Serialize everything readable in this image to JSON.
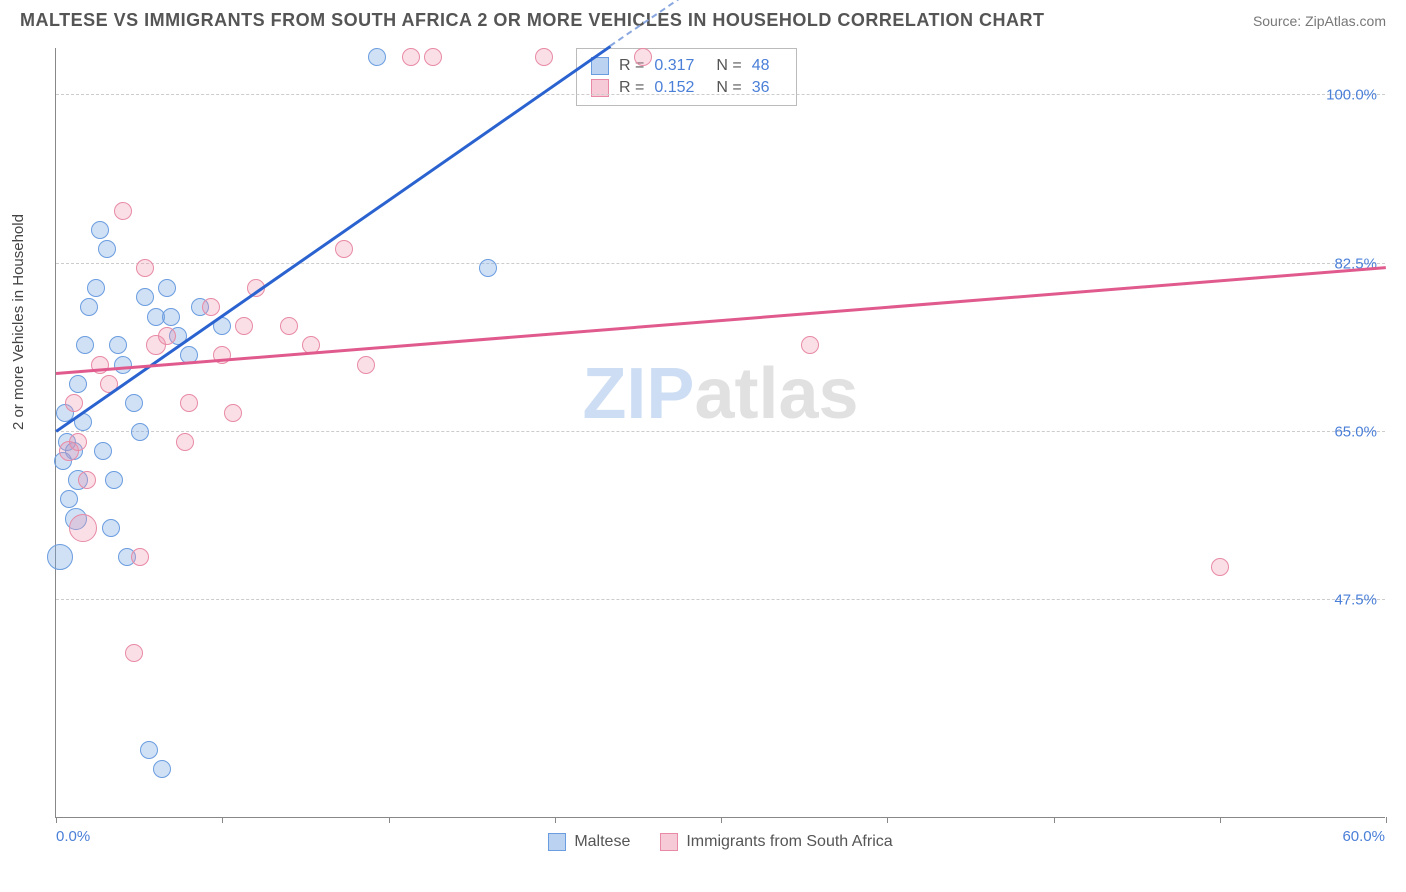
{
  "title": "MALTESE VS IMMIGRANTS FROM SOUTH AFRICA 2 OR MORE VEHICLES IN HOUSEHOLD CORRELATION CHART",
  "source": "Source: ZipAtlas.com",
  "ylabel": "2 or more Vehicles in Household",
  "watermark_a": "ZIP",
  "watermark_b": "atlas",
  "chart": {
    "type": "scatter",
    "xlim": [
      0,
      60
    ],
    "ylim": [
      25,
      105
    ],
    "x_min_label": "0.0%",
    "x_max_label": "60.0%",
    "x_ticks": [
      0,
      7.5,
      15,
      22.5,
      30,
      37.5,
      45,
      52.5,
      60
    ],
    "y_ticks": [
      {
        "v": 47.5,
        "label": "47.5%"
      },
      {
        "v": 65.0,
        "label": "65.0%"
      },
      {
        "v": 82.5,
        "label": "82.5%"
      },
      {
        "v": 100.0,
        "label": "100.0%"
      }
    ],
    "background_color": "#ffffff",
    "grid_color": "#cccccc",
    "series": [
      {
        "name": "Maltese",
        "color_fill": "rgba(120,165,225,0.35)",
        "color_stroke": "#6a9de0",
        "trend_color": "#2a62d0",
        "R": 0.317,
        "N": 48,
        "trend": {
          "x1": 0,
          "y1": 65,
          "x2": 25,
          "y2": 105
        },
        "points": [
          {
            "x": 0.5,
            "y": 64,
            "r": 9
          },
          {
            "x": 0.8,
            "y": 63,
            "r": 9
          },
          {
            "x": 0.3,
            "y": 62,
            "r": 9
          },
          {
            "x": 1.2,
            "y": 66,
            "r": 9
          },
          {
            "x": 1.0,
            "y": 60,
            "r": 10
          },
          {
            "x": 0.6,
            "y": 58,
            "r": 9
          },
          {
            "x": 0.2,
            "y": 52,
            "r": 13
          },
          {
            "x": 1.5,
            "y": 78,
            "r": 9
          },
          {
            "x": 1.8,
            "y": 80,
            "r": 9
          },
          {
            "x": 2.0,
            "y": 86,
            "r": 9
          },
          {
            "x": 2.3,
            "y": 84,
            "r": 9
          },
          {
            "x": 2.8,
            "y": 74,
            "r": 9
          },
          {
            "x": 3.0,
            "y": 72,
            "r": 9
          },
          {
            "x": 3.5,
            "y": 68,
            "r": 9
          },
          {
            "x": 4.0,
            "y": 79,
            "r": 9
          },
          {
            "x": 4.5,
            "y": 77,
            "r": 9
          },
          {
            "x": 5.0,
            "y": 80,
            "r": 9
          },
          {
            "x": 5.5,
            "y": 75,
            "r": 9
          },
          {
            "x": 6.5,
            "y": 78,
            "r": 9
          },
          {
            "x": 6.0,
            "y": 73,
            "r": 9
          },
          {
            "x": 2.5,
            "y": 55,
            "r": 9
          },
          {
            "x": 3.2,
            "y": 52,
            "r": 9
          },
          {
            "x": 4.2,
            "y": 32,
            "r": 9
          },
          {
            "x": 4.8,
            "y": 30,
            "r": 9
          },
          {
            "x": 14.5,
            "y": 104,
            "r": 9
          },
          {
            "x": 19.5,
            "y": 82,
            "r": 9
          },
          {
            "x": 1.0,
            "y": 70,
            "r": 9
          },
          {
            "x": 1.3,
            "y": 74,
            "r": 9
          },
          {
            "x": 0.4,
            "y": 67,
            "r": 9
          },
          {
            "x": 0.9,
            "y": 56,
            "r": 11
          },
          {
            "x": 2.1,
            "y": 63,
            "r": 9
          },
          {
            "x": 2.6,
            "y": 60,
            "r": 9
          },
          {
            "x": 3.8,
            "y": 65,
            "r": 9
          },
          {
            "x": 5.2,
            "y": 77,
            "r": 9
          },
          {
            "x": 7.5,
            "y": 76,
            "r": 9
          }
        ]
      },
      {
        "name": "Immigrants from South Africa",
        "color_fill": "rgba(240,150,175,0.30)",
        "color_stroke": "#e88aa5",
        "trend_color": "#e15a8d",
        "R": 0.152,
        "N": 36,
        "trend": {
          "x1": 0,
          "y1": 71,
          "x2": 60,
          "y2": 82
        },
        "points": [
          {
            "x": 0.6,
            "y": 63,
            "r": 10
          },
          {
            "x": 1.0,
            "y": 64,
            "r": 9
          },
          {
            "x": 1.4,
            "y": 60,
            "r": 9
          },
          {
            "x": 2.0,
            "y": 72,
            "r": 9
          },
          {
            "x": 2.4,
            "y": 70,
            "r": 9
          },
          {
            "x": 3.0,
            "y": 88,
            "r": 9
          },
          {
            "x": 4.0,
            "y": 82,
            "r": 9
          },
          {
            "x": 4.5,
            "y": 74,
            "r": 10
          },
          {
            "x": 5.0,
            "y": 75,
            "r": 9
          },
          {
            "x": 6.0,
            "y": 68,
            "r": 9
          },
          {
            "x": 7.0,
            "y": 78,
            "r": 9
          },
          {
            "x": 7.5,
            "y": 73,
            "r": 9
          },
          {
            "x": 8.0,
            "y": 67,
            "r": 9
          },
          {
            "x": 8.5,
            "y": 76,
            "r": 9
          },
          {
            "x": 9.0,
            "y": 80,
            "r": 9
          },
          {
            "x": 10.5,
            "y": 76,
            "r": 9
          },
          {
            "x": 11.5,
            "y": 74,
            "r": 9
          },
          {
            "x": 13.0,
            "y": 84,
            "r": 9
          },
          {
            "x": 14.0,
            "y": 72,
            "r": 9
          },
          {
            "x": 16.0,
            "y": 104,
            "r": 9
          },
          {
            "x": 17.0,
            "y": 104,
            "r": 9
          },
          {
            "x": 22.0,
            "y": 104,
            "r": 9
          },
          {
            "x": 26.5,
            "y": 104,
            "r": 9
          },
          {
            "x": 34.0,
            "y": 74,
            "r": 9
          },
          {
            "x": 52.5,
            "y": 51,
            "r": 9
          },
          {
            "x": 3.5,
            "y": 42,
            "r": 9
          },
          {
            "x": 3.8,
            "y": 52,
            "r": 9
          },
          {
            "x": 1.2,
            "y": 55,
            "r": 14
          },
          {
            "x": 0.8,
            "y": 68,
            "r": 9
          },
          {
            "x": 5.8,
            "y": 64,
            "r": 9
          }
        ]
      }
    ],
    "legend_labels": [
      "Maltese",
      "Immigrants from South Africa"
    ]
  },
  "stats": {
    "r_label": "R =",
    "n_label": "N =",
    "rows": [
      {
        "R": "0.317",
        "N": "48"
      },
      {
        "R": "0.152",
        "N": "36"
      }
    ]
  }
}
